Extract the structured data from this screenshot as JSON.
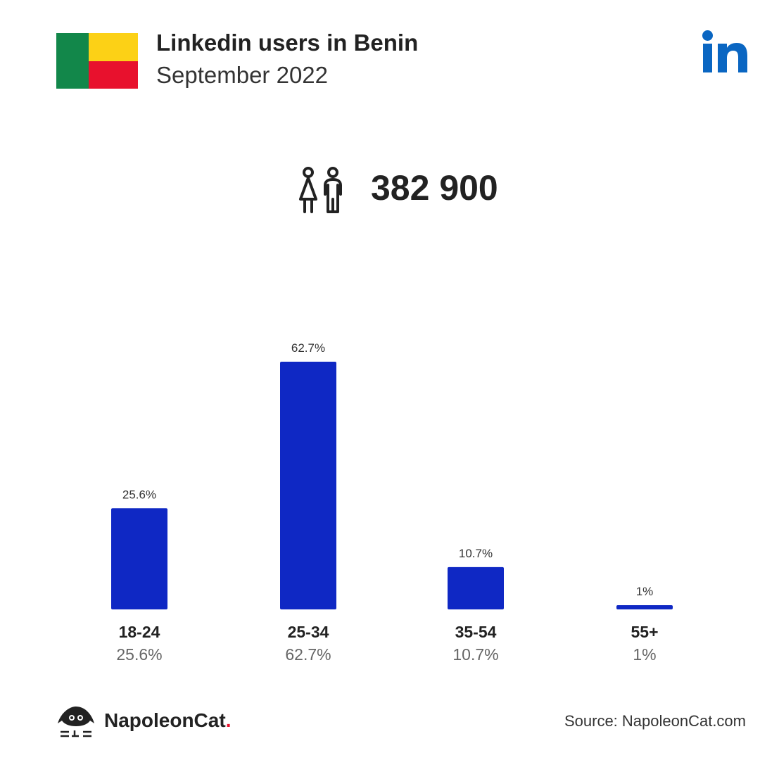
{
  "header": {
    "title": "Linkedin users in Benin",
    "subtitle": "September 2022"
  },
  "flag": {
    "country": "Benin",
    "colors": [
      "#12874a",
      "#fcd116",
      "#e8112d"
    ]
  },
  "logo": {
    "icon": "linkedin-icon",
    "color": "#0a66c2"
  },
  "summary": {
    "icon": "people-icon",
    "total": "382 900"
  },
  "chart_data": {
    "type": "bar",
    "categories": [
      "18-24",
      "25-34",
      "35-54",
      "55+"
    ],
    "values": [
      25.6,
      62.7,
      10.7,
      1
    ],
    "value_labels": [
      "25.6%",
      "62.7%",
      "10.7%",
      "1%"
    ],
    "bar_color": "#0f28c4",
    "ylim": [
      0,
      62.7
    ]
  },
  "footer": {
    "brand_name": "NapoleonCat",
    "brand_dot": ".",
    "source": "Source: NapoleonCat.com"
  }
}
